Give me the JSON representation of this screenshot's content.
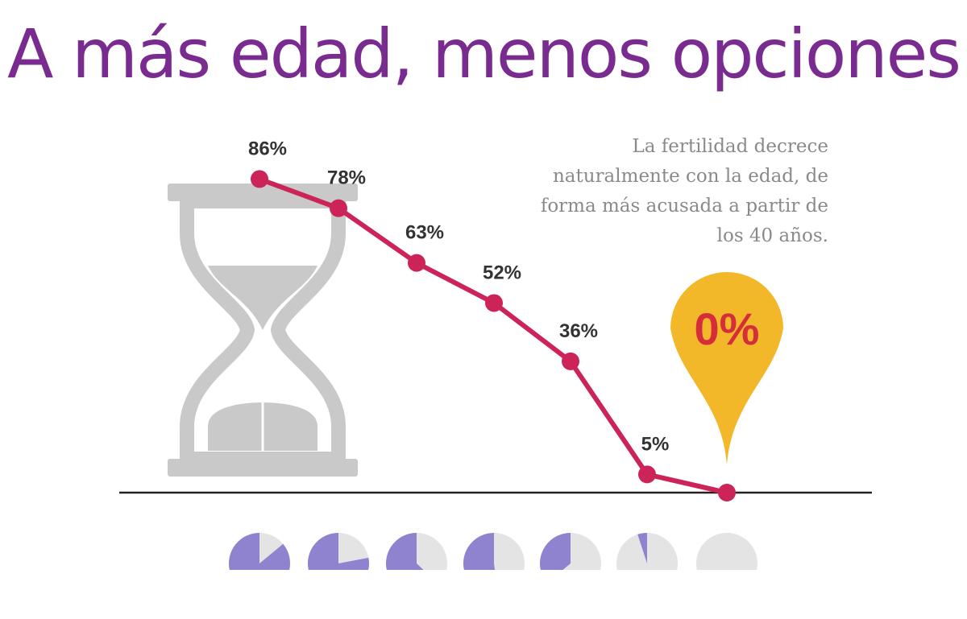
{
  "chart_data": {
    "type": "line",
    "title": "A más edad, menos opciones",
    "subtitle": "La fertilidad decrece naturalmente con la edad, de forma más acusada a partir de los 40 años.",
    "categories": [
      null,
      null,
      null,
      null,
      null,
      null,
      null
    ],
    "values": [
      86,
      78,
      63,
      52,
      36,
      5,
      0
    ],
    "value_labels": [
      "86%",
      "78%",
      "63%",
      "52%",
      "36%",
      "5%",
      "0%"
    ],
    "color": "#cc2458",
    "highlight_color": "#f2b829",
    "pie_color": "#8f83cf"
  }
}
